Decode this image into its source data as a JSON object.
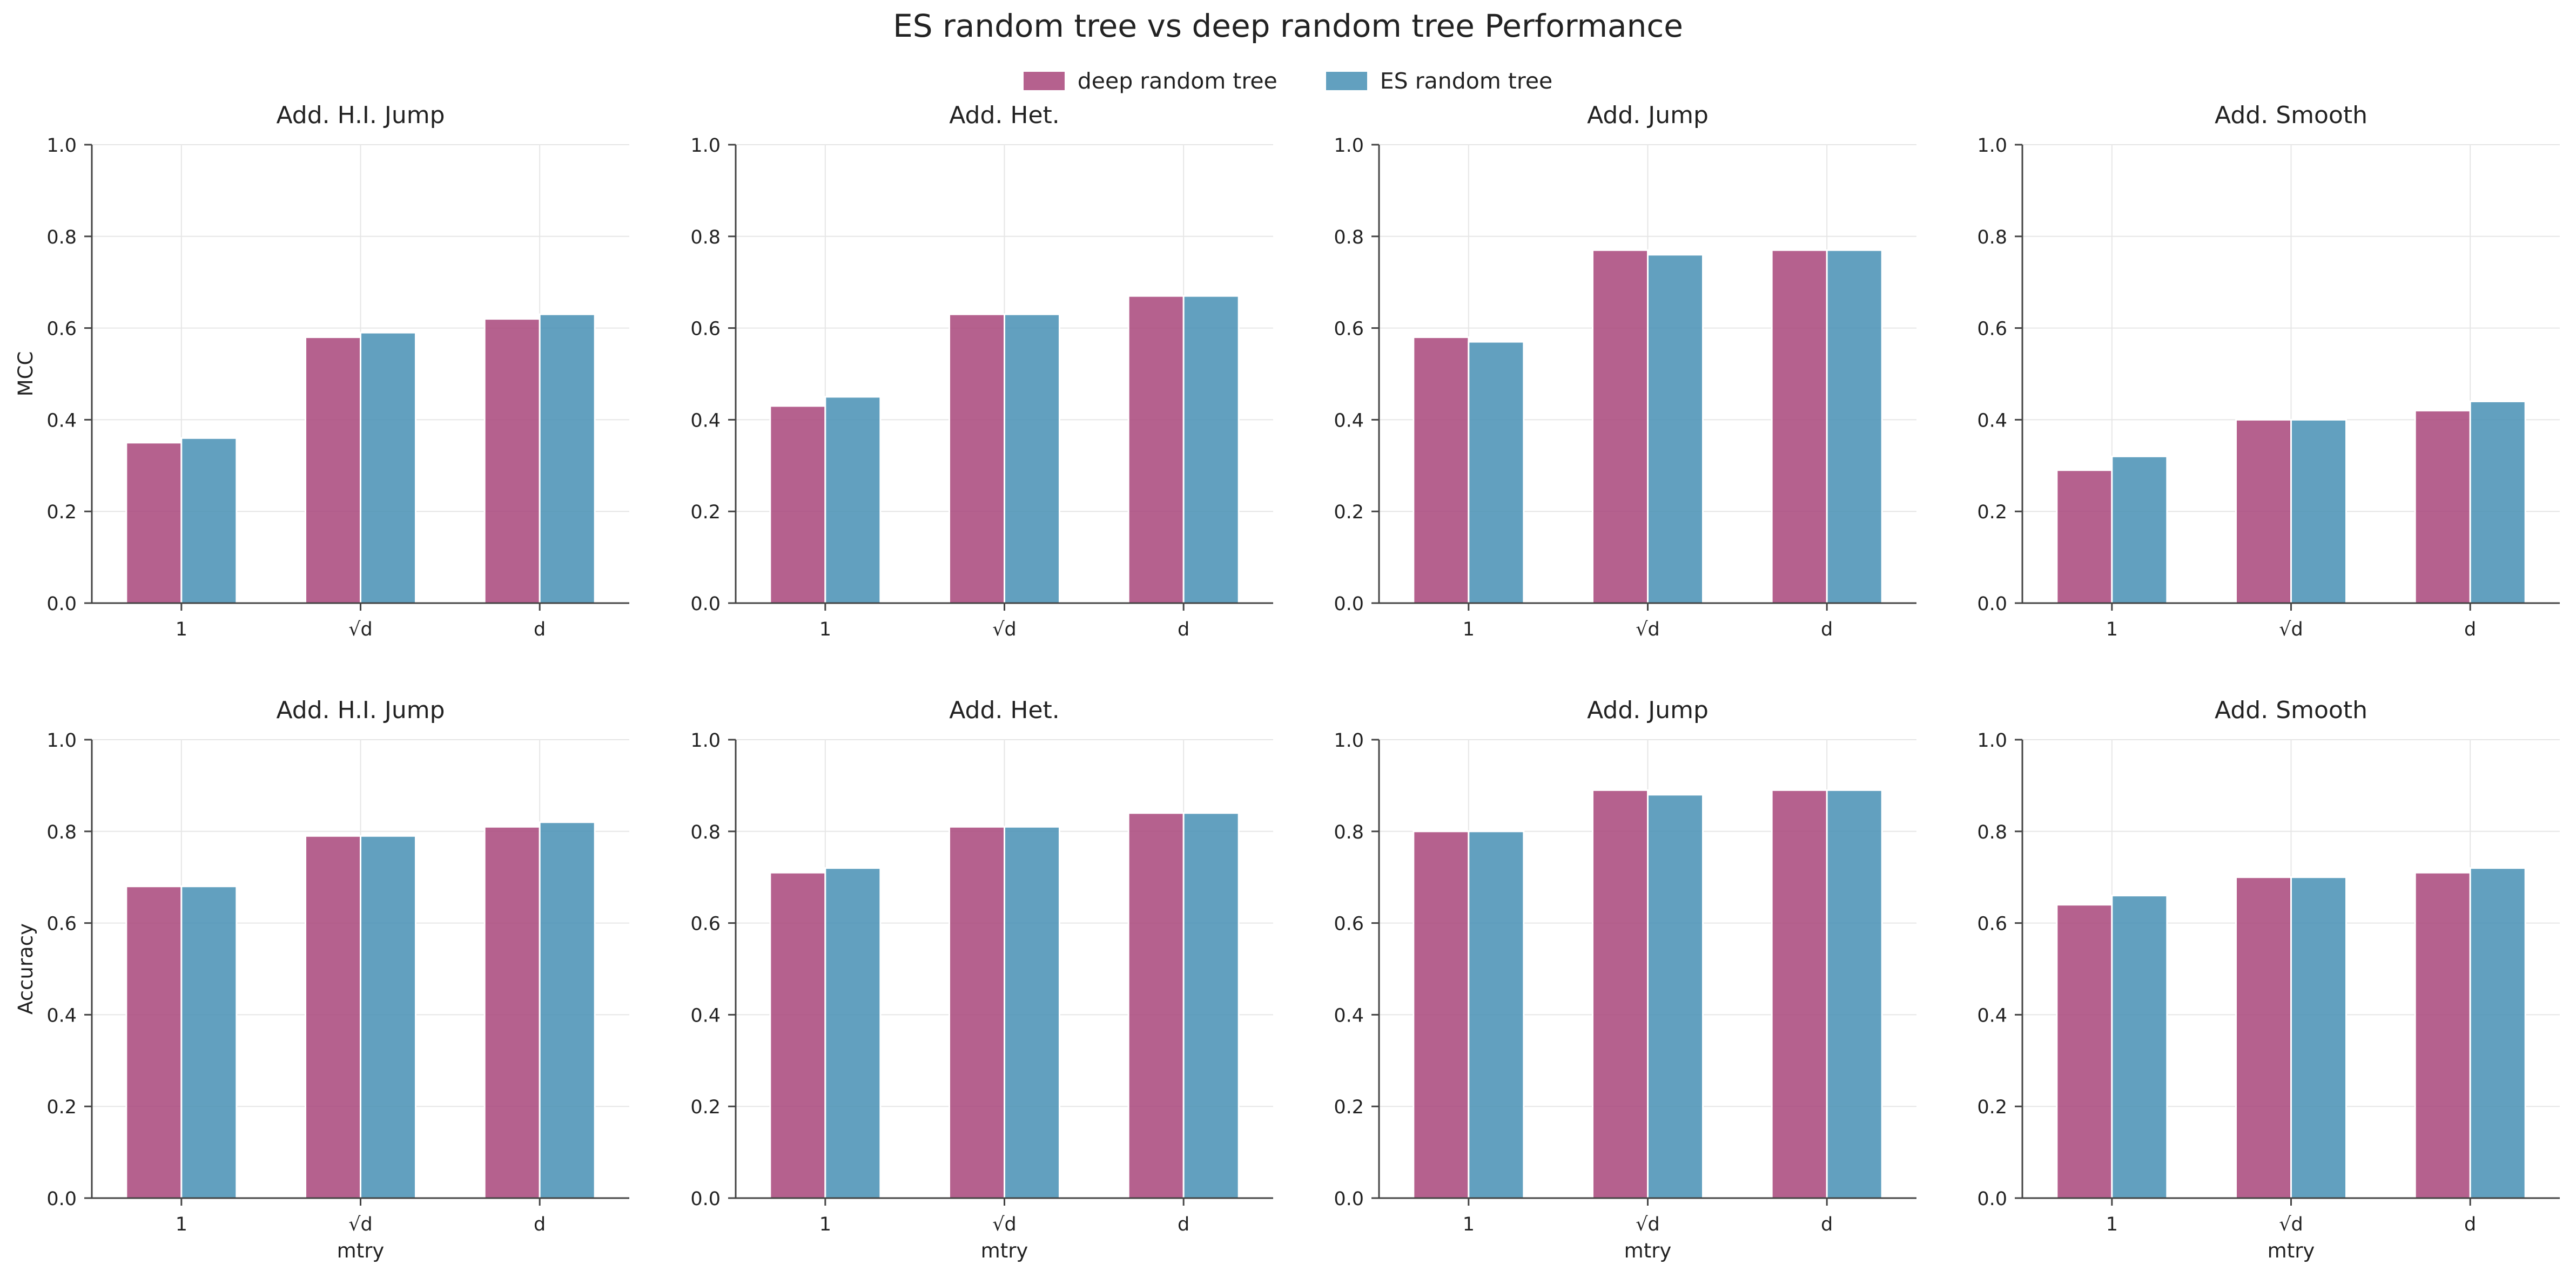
{
  "title": "ES random tree vs deep random tree Performance",
  "legend": [
    {
      "name": "deep random tree",
      "color": "#a8457a"
    },
    {
      "name": "ES random tree",
      "color": "#468fb4"
    }
  ],
  "chart_data": {
    "type": "bar",
    "title": "ES random tree vs deep random tree Performance",
    "categories": [
      "1",
      "√d",
      "d"
    ],
    "xlabel": "mtry",
    "ylim": [
      0,
      1
    ],
    "yticks": [
      "0.0",
      "0.2",
      "0.4",
      "0.6",
      "0.8",
      "1.0"
    ],
    "grid": true,
    "legend_position": "top-center",
    "rows": [
      {
        "ylabel": "MCC",
        "panels": [
          {
            "title": "Add. H.I. Jump",
            "series": [
              {
                "name": "deep random tree",
                "values": [
                  0.35,
                  0.58,
                  0.62
                ]
              },
              {
                "name": "ES random tree",
                "values": [
                  0.36,
                  0.59,
                  0.63
                ]
              }
            ]
          },
          {
            "title": "Add. Het.",
            "series": [
              {
                "name": "deep random tree",
                "values": [
                  0.43,
                  0.63,
                  0.67
                ]
              },
              {
                "name": "ES random tree",
                "values": [
                  0.45,
                  0.63,
                  0.67
                ]
              }
            ]
          },
          {
            "title": "Add. Jump",
            "series": [
              {
                "name": "deep random tree",
                "values": [
                  0.58,
                  0.77,
                  0.77
                ]
              },
              {
                "name": "ES random tree",
                "values": [
                  0.57,
                  0.76,
                  0.77
                ]
              }
            ]
          },
          {
            "title": "Add. Smooth",
            "series": [
              {
                "name": "deep random tree",
                "values": [
                  0.29,
                  0.4,
                  0.42
                ]
              },
              {
                "name": "ES random tree",
                "values": [
                  0.32,
                  0.4,
                  0.44
                ]
              }
            ]
          }
        ]
      },
      {
        "ylabel": "Accuracy",
        "panels": [
          {
            "title": "Add. H.I. Jump",
            "series": [
              {
                "name": "deep random tree",
                "values": [
                  0.68,
                  0.79,
                  0.81
                ]
              },
              {
                "name": "ES random tree",
                "values": [
                  0.68,
                  0.79,
                  0.82
                ]
              }
            ]
          },
          {
            "title": "Add. Het.",
            "series": [
              {
                "name": "deep random tree",
                "values": [
                  0.71,
                  0.81,
                  0.84
                ]
              },
              {
                "name": "ES random tree",
                "values": [
                  0.72,
                  0.81,
                  0.84
                ]
              }
            ]
          },
          {
            "title": "Add. Jump",
            "series": [
              {
                "name": "deep random tree",
                "values": [
                  0.8,
                  0.89,
                  0.89
                ]
              },
              {
                "name": "ES random tree",
                "values": [
                  0.8,
                  0.88,
                  0.89
                ]
              }
            ]
          },
          {
            "title": "Add. Smooth",
            "series": [
              {
                "name": "deep random tree",
                "values": [
                  0.64,
                  0.7,
                  0.71
                ]
              },
              {
                "name": "ES random tree",
                "values": [
                  0.66,
                  0.7,
                  0.72
                ]
              }
            ]
          }
        ]
      }
    ]
  }
}
